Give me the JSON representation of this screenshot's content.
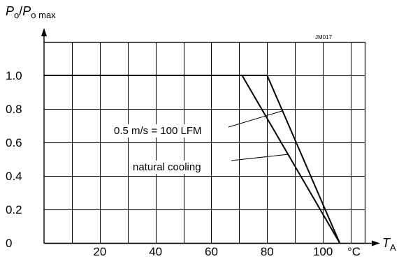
{
  "chart_data": {
    "type": "line",
    "code": "JM017",
    "ylabel": {
      "sym1": "P",
      "sub1": "o",
      "slash": "/",
      "sym2": "P",
      "sub2": "o max"
    },
    "xlabel": {
      "sym": "T",
      "sub": "A"
    },
    "x_unit": "°C",
    "xlim": [
      0,
      115
    ],
    "ylim": [
      0,
      1.2
    ],
    "x_grid_step": 10,
    "y_grid_step": 0.2,
    "x_ticks": [
      {
        "v": 20,
        "label": "20"
      },
      {
        "v": 40,
        "label": "40"
      },
      {
        "v": 60,
        "label": "60"
      },
      {
        "v": 80,
        "label": "80"
      },
      {
        "v": 100,
        "label": "100"
      }
    ],
    "y_ticks": [
      {
        "v": 0,
        "label": "0"
      },
      {
        "v": 0.2,
        "label": "0.2"
      },
      {
        "v": 0.4,
        "label": "0.4"
      },
      {
        "v": 0.6,
        "label": "0.6"
      },
      {
        "v": 0.8,
        "label": "0.8"
      },
      {
        "v": 1.0,
        "label": "1.0"
      }
    ],
    "series": [
      {
        "name": "0.5 m/s = 100 LFM",
        "points": [
          [
            0,
            1.0
          ],
          [
            80,
            1.0
          ],
          [
            106,
            0
          ]
        ]
      },
      {
        "name": "natural cooling",
        "points": [
          [
            0,
            1.0
          ],
          [
            71,
            1.0
          ],
          [
            106,
            0
          ]
        ]
      }
    ],
    "annotations": [
      {
        "text": "0.5 m/s = 100 LFM",
        "series": 0,
        "anchor_x": 85.5
      },
      {
        "text": "natural cooling",
        "series": 1,
        "anchor_x": 87.5
      }
    ],
    "grid": true,
    "legend": "none"
  }
}
